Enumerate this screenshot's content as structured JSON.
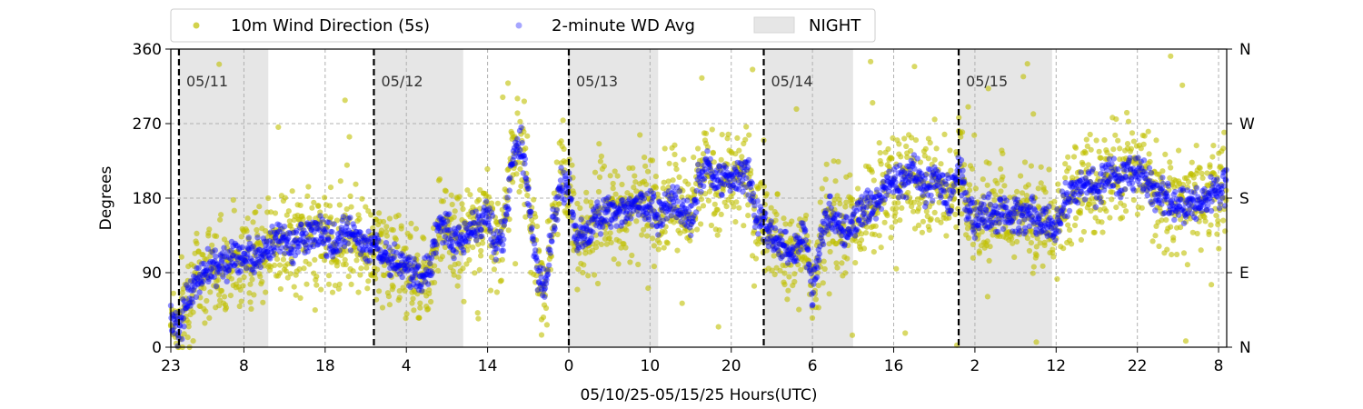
{
  "chart_data": {
    "type": "scatter",
    "title": "",
    "xlabel": "05/10/25-05/15/25  Hours(UTC)",
    "ylabel": "Degrees",
    "x_range_hours": [
      0,
      130
    ],
    "ylim": [
      0,
      360
    ],
    "x_ticks": [
      {
        "hour": 0,
        "label": "23"
      },
      {
        "hour": 9,
        "label": "8"
      },
      {
        "hour": 19,
        "label": "18"
      },
      {
        "hour": 29,
        "label": "4"
      },
      {
        "hour": 39,
        "label": "14"
      },
      {
        "hour": 49,
        "label": "0"
      },
      {
        "hour": 59,
        "label": "10"
      },
      {
        "hour": 69,
        "label": "20"
      },
      {
        "hour": 79,
        "label": "6"
      },
      {
        "hour": 89,
        "label": "16"
      },
      {
        "hour": 99,
        "label": "2"
      },
      {
        "hour": 109,
        "label": "12"
      },
      {
        "hour": 119,
        "label": "22"
      },
      {
        "hour": 129,
        "label": "8"
      }
    ],
    "y_ticks": [
      0,
      90,
      180,
      270,
      360
    ],
    "y_ticks_right": [
      {
        "value": 0,
        "label": "N"
      },
      {
        "value": 90,
        "label": "E"
      },
      {
        "value": 180,
        "label": "S"
      },
      {
        "value": 270,
        "label": "W"
      },
      {
        "value": 360,
        "label": "N"
      }
    ],
    "grid": true,
    "legend_position": "top",
    "legend": [
      {
        "label": "10m Wind Direction (5s)",
        "kind": "marker",
        "color": "#bfbf00"
      },
      {
        "label": "2-minute WD Avg",
        "kind": "marker",
        "color": "#0000ff"
      },
      {
        "label": "NIGHT",
        "kind": "patch",
        "color": "#e6e6e6"
      }
    ],
    "day_markers": [
      {
        "hour": 1,
        "label": "05/11"
      },
      {
        "hour": 25,
        "label": "05/12"
      },
      {
        "hour": 49,
        "label": "05/13"
      },
      {
        "hour": 73,
        "label": "05/14"
      },
      {
        "hour": 97,
        "label": "05/15"
      }
    ],
    "night_periods": [
      [
        1,
        12
      ],
      [
        25,
        36
      ],
      [
        49,
        60
      ],
      [
        73,
        84
      ],
      [
        97,
        108.5
      ]
    ],
    "series": [
      {
        "name": "10m Wind Direction (5s)",
        "color": "#bfbf00",
        "hours": [
          0,
          1,
          2,
          3,
          4,
          5,
          6,
          7,
          8,
          9,
          10,
          11,
          12,
          13,
          14,
          15,
          16,
          17,
          18,
          19,
          20,
          21,
          22,
          23,
          24,
          25,
          26,
          27,
          28,
          29,
          30,
          31,
          32,
          33,
          34,
          35,
          36,
          37,
          38,
          39,
          40,
          41,
          42,
          43,
          44,
          45,
          46,
          47,
          48,
          49,
          50,
          51,
          52,
          53,
          54,
          55,
          56,
          57,
          58,
          59,
          60,
          61,
          62,
          63,
          64,
          65,
          66,
          67,
          68,
          69,
          70,
          71,
          72,
          73,
          74,
          75,
          76,
          77,
          78,
          79,
          80,
          81,
          82,
          83,
          84,
          85,
          86,
          87,
          88,
          89,
          90,
          91,
          92,
          93,
          94,
          95,
          96,
          97,
          98,
          99,
          100,
          101,
          102,
          103,
          104,
          105,
          106,
          107,
          108,
          109,
          110,
          111,
          112,
          113,
          114,
          115,
          116,
          117,
          118,
          119,
          120,
          121,
          122,
          123,
          124,
          125,
          126,
          127,
          128,
          129,
          130
        ],
        "degrees": [
          45,
          25,
          60,
          80,
          90,
          100,
          95,
          105,
          110,
          105,
          110,
          115,
          120,
          125,
          130,
          120,
          130,
          135,
          140,
          130,
          125,
          135,
          140,
          130,
          120,
          125,
          110,
          105,
          100,
          95,
          90,
          80,
          100,
          150,
          140,
          130,
          130,
          140,
          150,
          160,
          120,
          140,
          230,
          250,
          190,
          100,
          70,
          140,
          200,
          190,
          130,
          140,
          150,
          160,
          165,
          160,
          165,
          170,
          175,
          170,
          160,
          170,
          180,
          170,
          150,
          200,
          220,
          200,
          210,
          200,
          210,
          210,
          160,
          150,
          140,
          130,
          110,
          120,
          140,
          60,
          130,
          160,
          150,
          140,
          150,
          160,
          170,
          180,
          200,
          195,
          200,
          210,
          205,
          190,
          200,
          190,
          180,
          220,
          170,
          150,
          160,
          160,
          165,
          165,
          160,
          155,
          160,
          155,
          150,
          140,
          175,
          190,
          195,
          200,
          190,
          200,
          210,
          200,
          215,
          210,
          205,
          190,
          180,
          175,
          170,
          170,
          175,
          180,
          185,
          190,
          195
        ]
      },
      {
        "name": "2-minute WD Avg",
        "color": "#0000ff",
        "hours": [
          0,
          1,
          2,
          3,
          4,
          5,
          6,
          7,
          8,
          9,
          10,
          11,
          12,
          13,
          14,
          15,
          16,
          17,
          18,
          19,
          20,
          21,
          22,
          23,
          24,
          25,
          26,
          27,
          28,
          29,
          30,
          31,
          32,
          33,
          34,
          35,
          36,
          37,
          38,
          39,
          40,
          41,
          42,
          43,
          44,
          45,
          46,
          47,
          48,
          49,
          50,
          51,
          52,
          53,
          54,
          55,
          56,
          57,
          58,
          59,
          60,
          61,
          62,
          63,
          64,
          65,
          66,
          67,
          68,
          69,
          70,
          71,
          72,
          73,
          74,
          75,
          76,
          77,
          78,
          79,
          80,
          81,
          82,
          83,
          84,
          85,
          86,
          87,
          88,
          89,
          90,
          91,
          92,
          93,
          94,
          95,
          96,
          97,
          98,
          99,
          100,
          101,
          102,
          103,
          104,
          105,
          106,
          107,
          108,
          109,
          110,
          111,
          112,
          113,
          114,
          115,
          116,
          117,
          118,
          119,
          120,
          121,
          122,
          123,
          124,
          125,
          126,
          127,
          128,
          129,
          130
        ],
        "degrees": [
          45,
          20,
          55,
          80,
          90,
          100,
          95,
          105,
          110,
          105,
          110,
          115,
          120,
          125,
          130,
          120,
          130,
          135,
          140,
          130,
          125,
          135,
          140,
          130,
          120,
          125,
          110,
          105,
          100,
          95,
          90,
          80,
          100,
          150,
          140,
          130,
          130,
          140,
          150,
          160,
          120,
          140,
          230,
          250,
          190,
          100,
          70,
          140,
          200,
          190,
          130,
          140,
          150,
          160,
          165,
          160,
          165,
          170,
          175,
          170,
          160,
          170,
          180,
          170,
          150,
          200,
          220,
          200,
          210,
          200,
          210,
          210,
          160,
          150,
          140,
          130,
          110,
          120,
          140,
          60,
          130,
          160,
          150,
          140,
          150,
          160,
          170,
          180,
          200,
          195,
          200,
          210,
          205,
          190,
          200,
          190,
          180,
          220,
          170,
          150,
          160,
          160,
          165,
          165,
          160,
          155,
          160,
          155,
          150,
          140,
          175,
          190,
          195,
          200,
          190,
          200,
          210,
          200,
          215,
          210,
          205,
          190,
          180,
          175,
          170,
          170,
          175,
          180,
          185,
          190,
          195
        ]
      }
    ]
  }
}
